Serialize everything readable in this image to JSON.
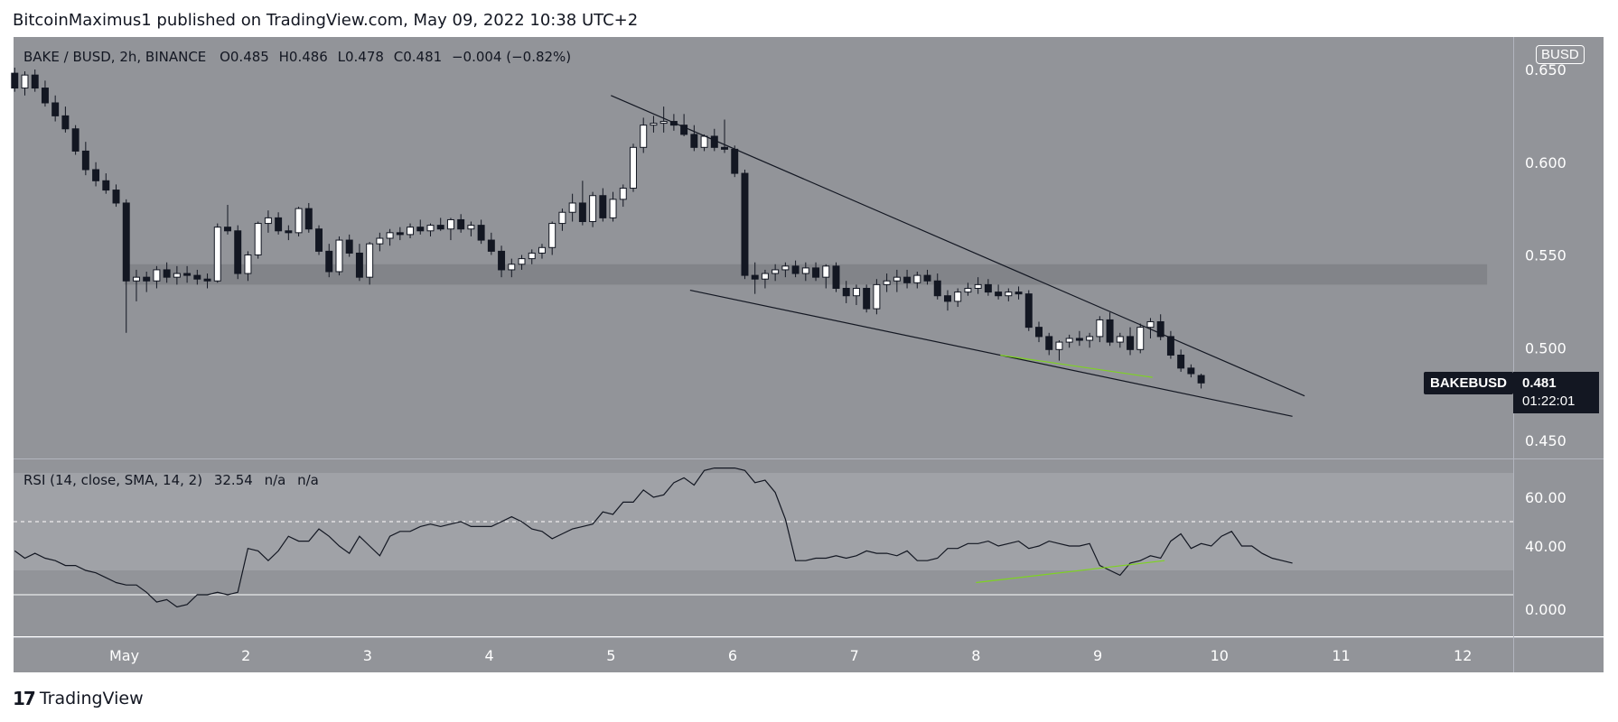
{
  "attribution": "BitcoinMaximus1 published on TradingView.com, May 09, 2022 10:38 UTC+2",
  "footer": {
    "brand": "TradingView",
    "mark": "17"
  },
  "colors": {
    "chart_bg": "#929499",
    "zone": "#7f8186",
    "rsi_band": "#a0a2a7",
    "candle_up": "#ffffff",
    "candle_down": "#131722",
    "trendline": "#131722",
    "divergence": "#7ed321",
    "axis_text": "#ffffff"
  },
  "legend": {
    "symbol": "BAKE / BUSD, 2h, BINANCE",
    "o_key": "O",
    "o_val": "0.485",
    "h_key": "H",
    "h_val": "0.486",
    "l_key": "L",
    "l_val": "0.478",
    "c_key": "C",
    "c_val": "0.481",
    "change": "−0.004 (−0.82%)"
  },
  "rsi_legend": {
    "label": "RSI (14, close, SMA, 14, 2)",
    "value": "32.54",
    "na1": "n/a",
    "na2": "n/a"
  },
  "badges": {
    "currency": "BUSD",
    "symbol": "BAKEBUSD",
    "price": "0.481",
    "countdown": "01:22:01"
  },
  "chart_data": [
    {
      "type": "candlestick",
      "title": "BAKE / BUSD, 2h, BINANCE",
      "price_ticks": [
        "0.650",
        "0.600",
        "0.550",
        "0.500",
        "0.450"
      ],
      "ylim": [
        0.438,
        0.658
      ],
      "x_ticks": [
        "May",
        "2",
        "3",
        "4",
        "5",
        "6",
        "7",
        "8",
        "9",
        "10",
        "11",
        "12"
      ],
      "xlim_days": [
        0.1,
        12.5
      ],
      "support_zone": [
        0.534,
        0.545
      ],
      "candles": [
        {
          "o": 0.648,
          "h": 0.651,
          "l": 0.638,
          "c": 0.64
        },
        {
          "o": 0.64,
          "h": 0.649,
          "l": 0.636,
          "c": 0.647
        },
        {
          "o": 0.647,
          "h": 0.65,
          "l": 0.638,
          "c": 0.64
        },
        {
          "o": 0.64,
          "h": 0.644,
          "l": 0.63,
          "c": 0.632
        },
        {
          "o": 0.632,
          "h": 0.636,
          "l": 0.622,
          "c": 0.625
        },
        {
          "o": 0.625,
          "h": 0.63,
          "l": 0.616,
          "c": 0.618
        },
        {
          "o": 0.618,
          "h": 0.62,
          "l": 0.604,
          "c": 0.606
        },
        {
          "o": 0.606,
          "h": 0.611,
          "l": 0.593,
          "c": 0.596
        },
        {
          "o": 0.596,
          "h": 0.6,
          "l": 0.587,
          "c": 0.59
        },
        {
          "o": 0.59,
          "h": 0.594,
          "l": 0.583,
          "c": 0.585
        },
        {
          "o": 0.585,
          "h": 0.588,
          "l": 0.576,
          "c": 0.578
        },
        {
          "o": 0.578,
          "h": 0.58,
          "l": 0.508,
          "c": 0.536
        },
        {
          "o": 0.536,
          "h": 0.542,
          "l": 0.525,
          "c": 0.538
        },
        {
          "o": 0.538,
          "h": 0.541,
          "l": 0.53,
          "c": 0.536
        },
        {
          "o": 0.536,
          "h": 0.544,
          "l": 0.532,
          "c": 0.542
        },
        {
          "o": 0.542,
          "h": 0.546,
          "l": 0.535,
          "c": 0.538
        },
        {
          "o": 0.538,
          "h": 0.544,
          "l": 0.534,
          "c": 0.54
        },
        {
          "o": 0.54,
          "h": 0.544,
          "l": 0.535,
          "c": 0.539
        },
        {
          "o": 0.539,
          "h": 0.542,
          "l": 0.534,
          "c": 0.537
        },
        {
          "o": 0.537,
          "h": 0.54,
          "l": 0.532,
          "c": 0.536
        },
        {
          "o": 0.536,
          "h": 0.567,
          "l": 0.535,
          "c": 0.565
        },
        {
          "o": 0.565,
          "h": 0.577,
          "l": 0.561,
          "c": 0.563
        },
        {
          "o": 0.563,
          "h": 0.566,
          "l": 0.537,
          "c": 0.54
        },
        {
          "o": 0.54,
          "h": 0.552,
          "l": 0.536,
          "c": 0.55
        },
        {
          "o": 0.55,
          "h": 0.568,
          "l": 0.548,
          "c": 0.567
        },
        {
          "o": 0.567,
          "h": 0.574,
          "l": 0.562,
          "c": 0.57
        },
        {
          "o": 0.57,
          "h": 0.573,
          "l": 0.561,
          "c": 0.563
        },
        {
          "o": 0.563,
          "h": 0.566,
          "l": 0.558,
          "c": 0.562
        },
        {
          "o": 0.562,
          "h": 0.576,
          "l": 0.56,
          "c": 0.575
        },
        {
          "o": 0.575,
          "h": 0.578,
          "l": 0.562,
          "c": 0.564
        },
        {
          "o": 0.564,
          "h": 0.566,
          "l": 0.55,
          "c": 0.552
        },
        {
          "o": 0.552,
          "h": 0.556,
          "l": 0.538,
          "c": 0.541
        },
        {
          "o": 0.541,
          "h": 0.56,
          "l": 0.539,
          "c": 0.558
        },
        {
          "o": 0.558,
          "h": 0.561,
          "l": 0.549,
          "c": 0.551
        },
        {
          "o": 0.551,
          "h": 0.556,
          "l": 0.536,
          "c": 0.538
        },
        {
          "o": 0.538,
          "h": 0.557,
          "l": 0.534,
          "c": 0.556
        },
        {
          "o": 0.556,
          "h": 0.562,
          "l": 0.552,
          "c": 0.559
        },
        {
          "o": 0.559,
          "h": 0.564,
          "l": 0.555,
          "c": 0.562
        },
        {
          "o": 0.562,
          "h": 0.565,
          "l": 0.558,
          "c": 0.561
        },
        {
          "o": 0.561,
          "h": 0.567,
          "l": 0.559,
          "c": 0.565
        },
        {
          "o": 0.565,
          "h": 0.569,
          "l": 0.561,
          "c": 0.563
        },
        {
          "o": 0.563,
          "h": 0.567,
          "l": 0.56,
          "c": 0.566
        },
        {
          "o": 0.566,
          "h": 0.57,
          "l": 0.563,
          "c": 0.564
        },
        {
          "o": 0.564,
          "h": 0.57,
          "l": 0.558,
          "c": 0.569
        },
        {
          "o": 0.569,
          "h": 0.572,
          "l": 0.562,
          "c": 0.564
        },
        {
          "o": 0.564,
          "h": 0.568,
          "l": 0.56,
          "c": 0.566
        },
        {
          "o": 0.566,
          "h": 0.569,
          "l": 0.556,
          "c": 0.558
        },
        {
          "o": 0.558,
          "h": 0.562,
          "l": 0.55,
          "c": 0.552
        },
        {
          "o": 0.552,
          "h": 0.555,
          "l": 0.538,
          "c": 0.542
        },
        {
          "o": 0.542,
          "h": 0.548,
          "l": 0.538,
          "c": 0.545
        },
        {
          "o": 0.545,
          "h": 0.55,
          "l": 0.542,
          "c": 0.548
        },
        {
          "o": 0.548,
          "h": 0.553,
          "l": 0.545,
          "c": 0.551
        },
        {
          "o": 0.551,
          "h": 0.556,
          "l": 0.548,
          "c": 0.554
        },
        {
          "o": 0.554,
          "h": 0.568,
          "l": 0.55,
          "c": 0.567
        },
        {
          "o": 0.567,
          "h": 0.575,
          "l": 0.563,
          "c": 0.573
        },
        {
          "o": 0.573,
          "h": 0.583,
          "l": 0.568,
          "c": 0.578
        },
        {
          "o": 0.578,
          "h": 0.59,
          "l": 0.566,
          "c": 0.568
        },
        {
          "o": 0.568,
          "h": 0.584,
          "l": 0.565,
          "c": 0.582
        },
        {
          "o": 0.582,
          "h": 0.586,
          "l": 0.568,
          "c": 0.57
        },
        {
          "o": 0.57,
          "h": 0.584,
          "l": 0.568,
          "c": 0.58
        },
        {
          "o": 0.58,
          "h": 0.588,
          "l": 0.576,
          "c": 0.586
        },
        {
          "o": 0.586,
          "h": 0.61,
          "l": 0.584,
          "c": 0.608
        },
        {
          "o": 0.608,
          "h": 0.624,
          "l": 0.605,
          "c": 0.62
        },
        {
          "o": 0.62,
          "h": 0.625,
          "l": 0.616,
          "c": 0.621
        },
        {
          "o": 0.621,
          "h": 0.63,
          "l": 0.616,
          "c": 0.622
        },
        {
          "o": 0.622,
          "h": 0.626,
          "l": 0.617,
          "c": 0.62
        },
        {
          "o": 0.62,
          "h": 0.626,
          "l": 0.614,
          "c": 0.615
        },
        {
          "o": 0.615,
          "h": 0.62,
          "l": 0.606,
          "c": 0.608
        },
        {
          "o": 0.608,
          "h": 0.615,
          "l": 0.606,
          "c": 0.614
        },
        {
          "o": 0.614,
          "h": 0.618,
          "l": 0.606,
          "c": 0.608
        },
        {
          "o": 0.608,
          "h": 0.623,
          "l": 0.605,
          "c": 0.607
        },
        {
          "o": 0.607,
          "h": 0.609,
          "l": 0.592,
          "c": 0.594
        },
        {
          "o": 0.594,
          "h": 0.596,
          "l": 0.537,
          "c": 0.539
        },
        {
          "o": 0.539,
          "h": 0.546,
          "l": 0.529,
          "c": 0.537
        },
        {
          "o": 0.537,
          "h": 0.542,
          "l": 0.532,
          "c": 0.54
        },
        {
          "o": 0.54,
          "h": 0.545,
          "l": 0.536,
          "c": 0.542
        },
        {
          "o": 0.542,
          "h": 0.546,
          "l": 0.538,
          "c": 0.544
        },
        {
          "o": 0.544,
          "h": 0.547,
          "l": 0.538,
          "c": 0.54
        },
        {
          "o": 0.54,
          "h": 0.546,
          "l": 0.536,
          "c": 0.543
        },
        {
          "o": 0.543,
          "h": 0.546,
          "l": 0.536,
          "c": 0.538
        },
        {
          "o": 0.538,
          "h": 0.545,
          "l": 0.532,
          "c": 0.544
        },
        {
          "o": 0.544,
          "h": 0.546,
          "l": 0.53,
          "c": 0.532
        },
        {
          "o": 0.532,
          "h": 0.536,
          "l": 0.524,
          "c": 0.528
        },
        {
          "o": 0.528,
          "h": 0.534,
          "l": 0.523,
          "c": 0.532
        },
        {
          "o": 0.532,
          "h": 0.534,
          "l": 0.519,
          "c": 0.521
        },
        {
          "o": 0.521,
          "h": 0.537,
          "l": 0.518,
          "c": 0.534
        },
        {
          "o": 0.534,
          "h": 0.54,
          "l": 0.53,
          "c": 0.536
        },
        {
          "o": 0.536,
          "h": 0.542,
          "l": 0.53,
          "c": 0.538
        },
        {
          "o": 0.538,
          "h": 0.542,
          "l": 0.532,
          "c": 0.535
        },
        {
          "o": 0.535,
          "h": 0.541,
          "l": 0.532,
          "c": 0.539
        },
        {
          "o": 0.539,
          "h": 0.542,
          "l": 0.534,
          "c": 0.536
        },
        {
          "o": 0.536,
          "h": 0.54,
          "l": 0.526,
          "c": 0.528
        },
        {
          "o": 0.528,
          "h": 0.531,
          "l": 0.52,
          "c": 0.525
        },
        {
          "o": 0.525,
          "h": 0.532,
          "l": 0.522,
          "c": 0.53
        },
        {
          "o": 0.53,
          "h": 0.535,
          "l": 0.528,
          "c": 0.532
        },
        {
          "o": 0.532,
          "h": 0.538,
          "l": 0.529,
          "c": 0.534
        },
        {
          "o": 0.534,
          "h": 0.537,
          "l": 0.528,
          "c": 0.53
        },
        {
          "o": 0.53,
          "h": 0.534,
          "l": 0.526,
          "c": 0.528
        },
        {
          "o": 0.528,
          "h": 0.532,
          "l": 0.525,
          "c": 0.53
        },
        {
          "o": 0.53,
          "h": 0.533,
          "l": 0.526,
          "c": 0.529
        },
        {
          "o": 0.529,
          "h": 0.531,
          "l": 0.509,
          "c": 0.511
        },
        {
          "o": 0.511,
          "h": 0.514,
          "l": 0.503,
          "c": 0.506
        },
        {
          "o": 0.506,
          "h": 0.508,
          "l": 0.496,
          "c": 0.499
        },
        {
          "o": 0.499,
          "h": 0.504,
          "l": 0.493,
          "c": 0.503
        },
        {
          "o": 0.503,
          "h": 0.507,
          "l": 0.5,
          "c": 0.505
        },
        {
          "o": 0.505,
          "h": 0.509,
          "l": 0.501,
          "c": 0.504
        },
        {
          "o": 0.504,
          "h": 0.508,
          "l": 0.5,
          "c": 0.506
        },
        {
          "o": 0.506,
          "h": 0.517,
          "l": 0.503,
          "c": 0.515
        },
        {
          "o": 0.515,
          "h": 0.519,
          "l": 0.501,
          "c": 0.503
        },
        {
          "o": 0.503,
          "h": 0.508,
          "l": 0.5,
          "c": 0.506
        },
        {
          "o": 0.506,
          "h": 0.511,
          "l": 0.496,
          "c": 0.499
        },
        {
          "o": 0.499,
          "h": 0.513,
          "l": 0.497,
          "c": 0.511
        },
        {
          "o": 0.511,
          "h": 0.516,
          "l": 0.505,
          "c": 0.514
        },
        {
          "o": 0.514,
          "h": 0.518,
          "l": 0.504,
          "c": 0.506
        },
        {
          "o": 0.506,
          "h": 0.509,
          "l": 0.494,
          "c": 0.496
        },
        {
          "o": 0.496,
          "h": 0.499,
          "l": 0.487,
          "c": 0.489
        },
        {
          "o": 0.489,
          "h": 0.491,
          "l": 0.484,
          "c": 0.486
        },
        {
          "o": 0.485,
          "h": 0.486,
          "l": 0.478,
          "c": 0.481
        }
      ],
      "trendlines": [
        {
          "name": "resistance",
          "x1": 5.0,
          "y1": 0.636,
          "x2": 10.7,
          "y2": 0.474
        },
        {
          "name": "support",
          "x1": 5.65,
          "y1": 0.531,
          "x2": 10.6,
          "y2": 0.463
        },
        {
          "name": "price-divergence",
          "x1": 8.2,
          "y1": 0.496,
          "x2": 9.45,
          "y2": 0.484
        }
      ]
    },
    {
      "type": "line",
      "title": "RSI (14, close, SMA, 14, 2)",
      "y_ticks": [
        "60.00",
        "40.00",
        "0.000"
      ],
      "band": [
        30,
        70
      ],
      "midline": 50,
      "zero_line": 20,
      "values": [
        38,
        35,
        37,
        35,
        34,
        32,
        32,
        30,
        29,
        27,
        25,
        24,
        24,
        21,
        17,
        18,
        15,
        16,
        20,
        20,
        21,
        20,
        21,
        39,
        38,
        34,
        38,
        44,
        42,
        42,
        47,
        44,
        40,
        37,
        44,
        40,
        36,
        44,
        46,
        46,
        48,
        49,
        48,
        49,
        50,
        48,
        48,
        48,
        50,
        52,
        50,
        47,
        46,
        43,
        45,
        47,
        48,
        49,
        54,
        53,
        58,
        58,
        63,
        60,
        61,
        66,
        68,
        65,
        71,
        72,
        72,
        72,
        71,
        66,
        67,
        62,
        51,
        34,
        34,
        35,
        35,
        36,
        35,
        36,
        38,
        37,
        37,
        36,
        38,
        34,
        34,
        35,
        39,
        39,
        41,
        41,
        42,
        40,
        41,
        42,
        39,
        40,
        42,
        41,
        40,
        40,
        41,
        32,
        30,
        28,
        33,
        34,
        36,
        35,
        42,
        45,
        39,
        41,
        40,
        44,
        46,
        40,
        40,
        37,
        35,
        34,
        33
      ],
      "divergence": {
        "x1": 8.0,
        "y1": 25,
        "x2": 9.55,
        "y2": 34
      }
    }
  ]
}
